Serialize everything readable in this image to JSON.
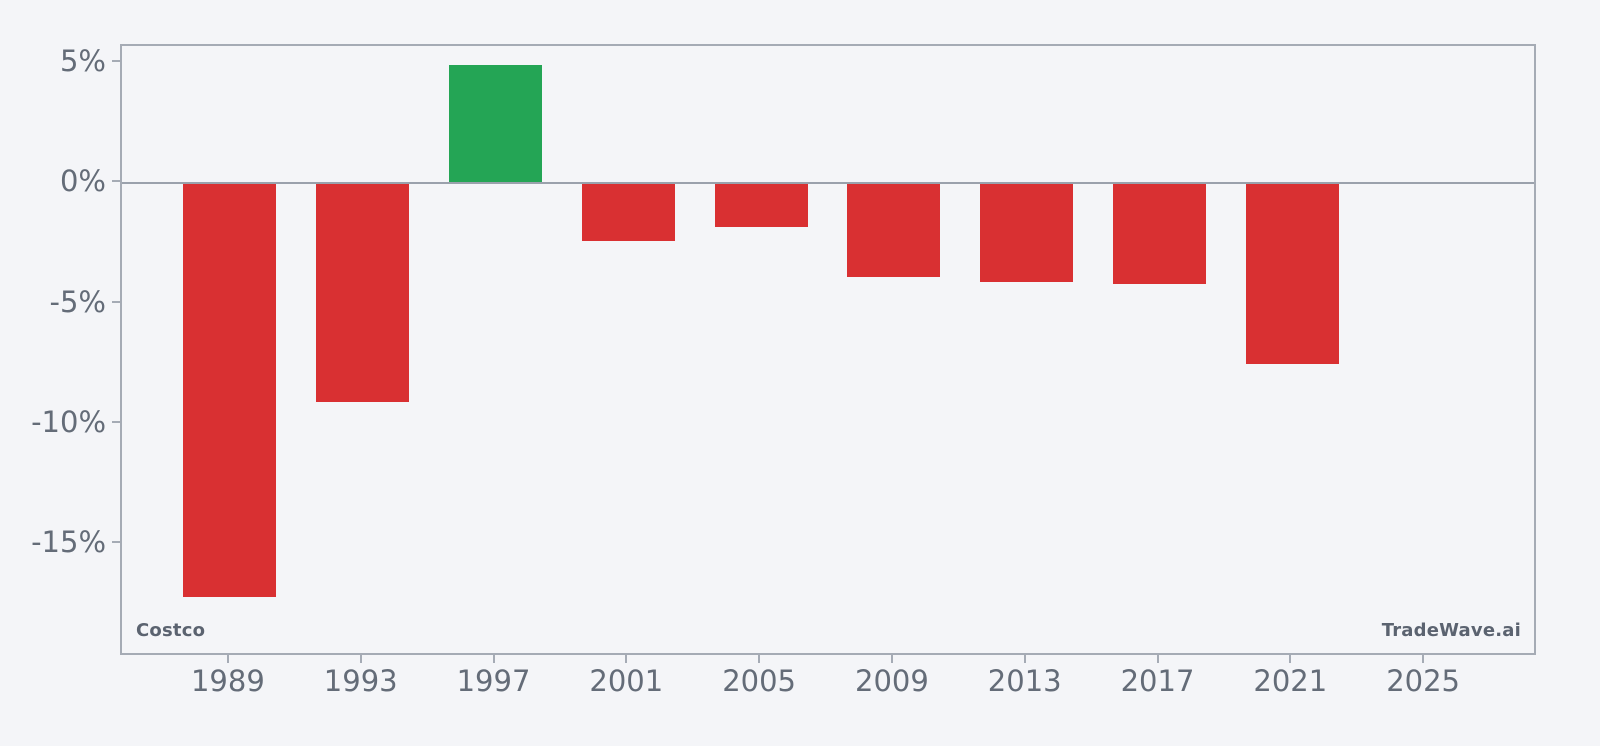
{
  "chart_data": {
    "type": "bar",
    "x": [
      1989,
      1993,
      1997,
      2001,
      2005,
      2009,
      2013,
      2017,
      2021
    ],
    "values": [
      -17.2,
      -9.1,
      4.9,
      -2.4,
      -1.8,
      -3.9,
      -4.1,
      -4.2,
      -7.5
    ],
    "bar_width_years": 2.8,
    "title": "",
    "xlabel": "",
    "ylabel": "",
    "xlim": [
      1985.75,
      2028.4
    ],
    "ylim": [
      -19.7,
      5.71
    ],
    "x_ticks": [
      1989,
      1993,
      1997,
      2001,
      2005,
      2009,
      2013,
      2017,
      2021,
      2025
    ],
    "y_ticks": [
      5,
      0,
      -5,
      -10,
      -15
    ],
    "y_tick_labels": [
      "5%",
      "0%",
      "-5%",
      "-10%",
      "-15%"
    ],
    "grid": false,
    "legend": "none",
    "zero_baseline": true,
    "colors": {
      "positive": "#24a555",
      "negative": "#d93032"
    },
    "annotations": [
      {
        "text": "Costco",
        "position": "bottom-left"
      },
      {
        "text": "TradeWave.ai",
        "position": "bottom-right"
      }
    ]
  },
  "labels": {
    "watermark_left": "Costco",
    "watermark_right": "TradeWave.ai"
  },
  "style": {
    "background": "#f4f5f8",
    "plot_border": "#a5abb5",
    "zero_line": "#9aa1ac",
    "tick_label_color": "#646c78",
    "watermark_color": "#5b6370"
  }
}
